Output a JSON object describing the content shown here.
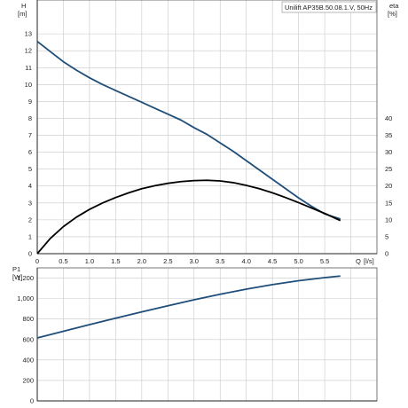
{
  "chart_data": [
    {
      "type": "line",
      "title": "Unilift AP35B.50.08.1.V, 50Hz",
      "x_label": "Q",
      "x_unit": "[l/s]",
      "x_ticks": [
        "0",
        "0.5",
        "1.0",
        "1.5",
        "2.0",
        "2.5",
        "3.0",
        "3.5",
        "4.0",
        "4.5",
        "5.0",
        "5.5"
      ],
      "xlim": [
        0,
        6.5
      ],
      "y_label": "H",
      "y_unit": "[m]",
      "y_ticks": [
        "0",
        "1",
        "2",
        "3",
        "4",
        "5",
        "6",
        "7",
        "8",
        "9",
        "10",
        "11",
        "12",
        "13"
      ],
      "ylim": [
        0,
        15
      ],
      "y2_label": "eta",
      "y2_unit": "[%]",
      "y2_ticks": [
        "0",
        "5",
        "10",
        "15",
        "20",
        "25",
        "30",
        "35",
        "40"
      ],
      "y2lim": [
        0,
        75
      ],
      "grid": true,
      "series": [
        {
          "axis": "left",
          "color": "#1f4e79",
          "x": [
            0,
            0.25,
            0.5,
            0.75,
            1.0,
            1.25,
            1.5,
            1.75,
            2.0,
            2.25,
            2.5,
            2.75,
            3.0,
            3.25,
            3.5,
            3.75,
            4.0,
            4.25,
            4.5,
            4.75,
            5.0,
            5.25,
            5.5,
            5.8
          ],
          "values": [
            12.55,
            11.95,
            11.35,
            10.85,
            10.4,
            10.0,
            9.65,
            9.3,
            8.95,
            8.6,
            8.25,
            7.9,
            7.45,
            7.05,
            6.55,
            6.05,
            5.5,
            4.95,
            4.4,
            3.85,
            3.3,
            2.8,
            2.35,
            2.05
          ]
        },
        {
          "axis": "right",
          "color": "#000000",
          "x": [
            0,
            0.25,
            0.5,
            0.75,
            1.0,
            1.25,
            1.5,
            1.75,
            2.0,
            2.25,
            2.5,
            2.75,
            3.0,
            3.25,
            3.5,
            3.75,
            4.0,
            4.25,
            4.5,
            4.75,
            5.0,
            5.25,
            5.5,
            5.8
          ],
          "values": [
            0,
            4.5,
            8.0,
            10.8,
            13.1,
            15.0,
            16.6,
            18.0,
            19.2,
            20.1,
            20.8,
            21.3,
            21.6,
            21.7,
            21.5,
            21.0,
            20.2,
            19.2,
            18.0,
            16.6,
            15.1,
            13.5,
            11.9,
            9.8
          ]
        }
      ]
    },
    {
      "type": "line",
      "y_label": "P1",
      "y_unit": "[W]",
      "y_ticks": [
        "0",
        "200",
        "400",
        "600",
        "800",
        "1,000",
        "1,200"
      ],
      "ylim": [
        0,
        1300
      ],
      "xlim": [
        0,
        6.5
      ],
      "grid": true,
      "series": [
        {
          "color": "#1f4e79",
          "x": [
            0,
            0.5,
            1.0,
            1.5,
            2.0,
            2.5,
            3.0,
            3.5,
            4.0,
            4.5,
            5.0,
            5.5,
            5.8
          ],
          "values": [
            615,
            680,
            745,
            808,
            870,
            930,
            988,
            1042,
            1092,
            1136,
            1174,
            1205,
            1220
          ]
        }
      ]
    }
  ]
}
